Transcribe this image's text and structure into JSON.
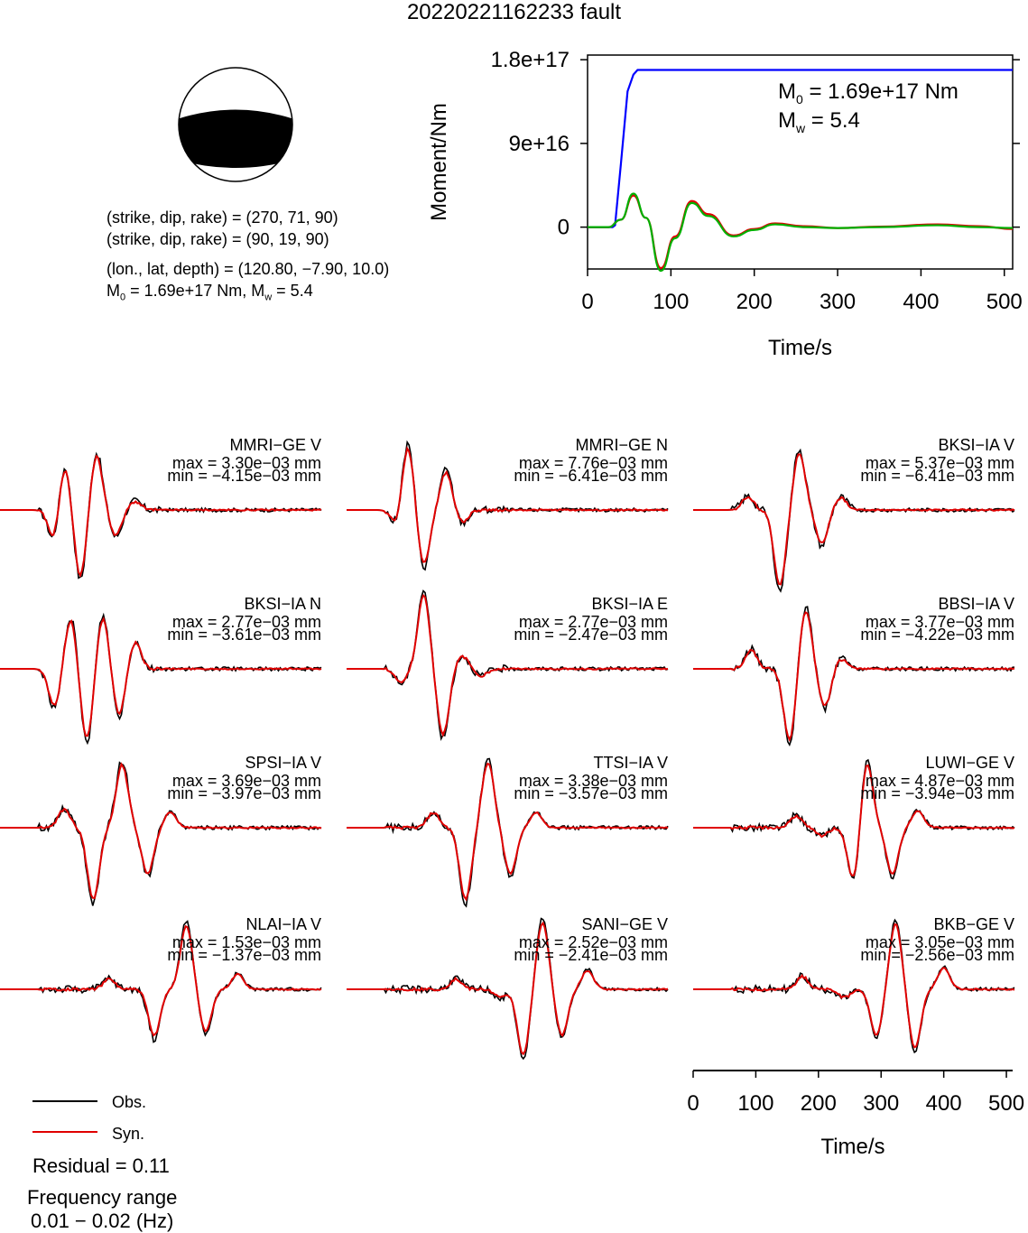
{
  "title": "20220221162233 fault",
  "focal_mechanism": {
    "plane1": "(strike, dip, rake) = (270, 71, 90)",
    "plane2": "(strike, dip, rake) = (90, 19, 90)",
    "location": "(lon., lat, depth) = (120.80, −7.90, 10.0)",
    "moment_line_prefix": "M",
    "moment_line_sub": "0",
    "moment_line_mid": " = 1.69e+17 Nm, M",
    "moment_line_sub2": "w",
    "moment_line_suffix": " = 5.4",
    "colors": {
      "compression": "#000000",
      "dilatation": "#ffffff"
    }
  },
  "moment_panel": {
    "ylabel": "Moment/Nm",
    "xlabel": "Time/s",
    "yticks": [
      "0",
      "9e+16",
      "1.8e+17"
    ],
    "xticks": [
      "0",
      "100",
      "200",
      "300",
      "400",
      "500"
    ],
    "m0_prefix": "M",
    "m0_sub": "0",
    "m0_value": " = 1.69e+17 Nm",
    "mw_prefix": "M",
    "mw_sub": "w",
    "mw_value": " = 5.4"
  },
  "legend": {
    "obs": "Obs.",
    "syn": "Syn."
  },
  "residual": "Residual = 0.11",
  "freq_label": "Frequency range",
  "freq_value": "0.01 − 0.02 (Hz)",
  "waveform_axis": {
    "xlabel": "Time/s",
    "xticks": [
      "0",
      "100",
      "200",
      "300",
      "400",
      "500"
    ]
  },
  "stations": [
    {
      "label": "MMRI−GE V",
      "max": "max = 3.30e−03 mm",
      "min": "min = −4.15e−03 mm"
    },
    {
      "label": "MMRI−GE N",
      "max": "max = 7.76e−03 mm",
      "min": "min = −6.41e−03 mm"
    },
    {
      "label": "BKSI−IA V",
      "max": "max = 5.37e−03 mm",
      "min": "min = −6.41e−03 mm"
    },
    {
      "label": "BKSI−IA N",
      "max": "max = 2.77e−03 mm",
      "min": "min = −3.61e−03 mm"
    },
    {
      "label": "BKSI−IA E",
      "max": "max = 2.77e−03 mm",
      "min": "min = −2.47e−03 mm"
    },
    {
      "label": "BBSI−IA V",
      "max": "max = 3.77e−03 mm",
      "min": "min = −4.22e−03 mm"
    },
    {
      "label": "SPSI−IA V",
      "max": "max = 3.69e−03 mm",
      "min": "min = −3.97e−03 mm"
    },
    {
      "label": "TTSI−IA V",
      "max": "max = 3.38e−03 mm",
      "min": "min = −3.57e−03 mm"
    },
    {
      "label": "LUWI−GE V",
      "max": "max = 4.87e−03 mm",
      "min": "min = −3.94e−03 mm"
    },
    {
      "label": "NLAI−IA V",
      "max": "max = 1.53e−03 mm",
      "min": "min = −1.37e−03 mm"
    },
    {
      "label": "SANI−GE V",
      "max": "max = 2.52e−03 mm",
      "min": "min = −2.41e−03 mm"
    },
    {
      "label": "BKB−GE V",
      "max": "max = 3.05e−03 mm",
      "min": "min = −2.56e−03 mm"
    }
  ],
  "chart_data": [
    {
      "type": "line",
      "xlabel": "Time/s",
      "ylabel": "Moment/Nm",
      "xlim": [
        0,
        510
      ],
      "ylim": [
        -4.5e+16,
        1.85e+17
      ],
      "series": [
        {
          "color": "#0000ff",
          "x": [
            0,
            30,
            33,
            40,
            48,
            55,
            60,
            100,
            200,
            300,
            400,
            510
          ],
          "y": [
            0,
            0,
            2000000000000000.0,
            6.8e+16,
            1.46e+17,
            1.64e+17,
            1.69e+17,
            1.69e+17,
            1.69e+17,
            1.69e+17,
            1.69e+17,
            1.69e+17
          ]
        },
        {
          "color": "#e00000",
          "x": [
            0,
            25,
            40,
            55,
            70,
            88,
            105,
            125,
            145,
            175,
            200,
            225,
            260,
            300,
            350,
            420,
            470,
            510
          ],
          "y": [
            0,
            0,
            8000000000000000.0,
            3.4e+16,
            1e+16,
            -4.4e+16,
            -1e+16,
            2.8e+16,
            1.4e+16,
            -9000000000000000.0,
            -2000000000000000.0,
            4000000000000000.0,
            1000000000000000.0,
            -1000000000000000.0,
            500000000000000.0,
            3000000000000000.0,
            1000000000000000.0,
            -2000000000000000.0
          ]
        },
        {
          "color": "#00b000",
          "x": [
            0,
            25,
            40,
            55,
            70,
            88,
            105,
            125,
            145,
            175,
            200,
            225,
            260,
            300,
            350,
            420,
            470,
            510
          ],
          "y": [
            0,
            0,
            8000000000000000.0,
            3.6e+16,
            1e+16,
            -4.7e+16,
            -1.2e+16,
            2.6e+16,
            1.2e+16,
            -1e+16,
            -3000000000000000.0,
            3000000000000000.0,
            0.0,
            -1000000000000000.0,
            0.0,
            2000000000000000.0,
            0.0,
            -1000000000000000.0
          ]
        }
      ]
    }
  ]
}
